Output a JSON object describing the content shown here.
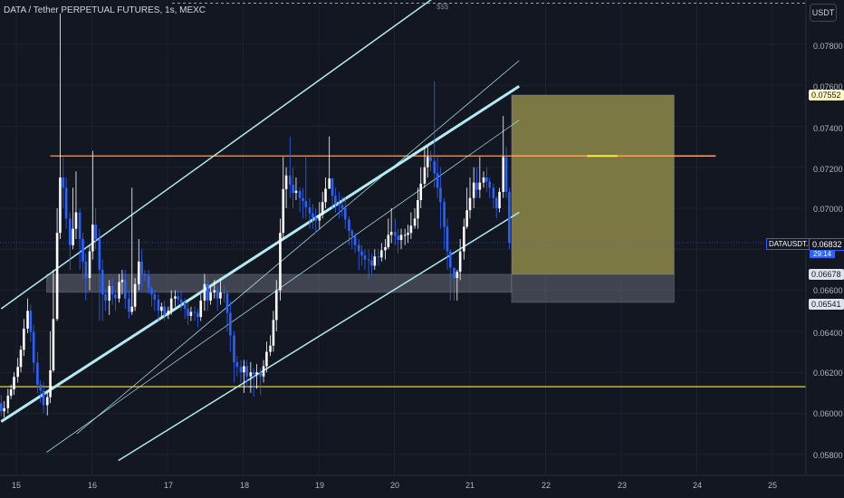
{
  "header": {
    "symbol_title": "DATA / Tether PERPETUAL FUTURES, 1s, MEXC",
    "currency_button": "USDT",
    "alert_marker": "$$$"
  },
  "price_axis": {
    "ticks": [
      "0.07800",
      "0.07600",
      "0.07400",
      "0.07200",
      "0.07000",
      "0.06600",
      "0.06400",
      "0.06200",
      "0.06000",
      "0.05800"
    ]
  },
  "time_axis": {
    "ticks": [
      "15",
      "16",
      "17",
      "18",
      "19",
      "20",
      "21",
      "22",
      "23",
      "24",
      "25"
    ]
  },
  "price_tags": {
    "target": "0.07552",
    "current": "0.06832",
    "entry": "0.06678",
    "stop": "0.06541",
    "ticker": "DATAUSDT.P",
    "countdown": "29:14"
  },
  "colors": {
    "background": "#131722",
    "up_candle": "#ffffff",
    "down_candle": "#2962ff",
    "channel_line": "#b2ebf2",
    "resistance_line": "#f0a35a",
    "support_line": "#ffeb3b",
    "target_zone": "#8e8a4a",
    "stop_zone": "#6d7280"
  },
  "chart_data": {
    "type": "candlestick",
    "symbol": "DATAUSDT.P",
    "x_range": [
      14.8,
      25.4
    ],
    "y_range": [
      0.0573,
      0.0803
    ],
    "price_lines": [
      {
        "value": 0.07255,
        "color": "#f0a35a"
      },
      {
        "value": 0.0613,
        "color": "#ffeb3b"
      },
      {
        "value": 0.08,
        "style": "dashed",
        "color": "#f0a35a"
      }
    ],
    "zones": [
      {
        "x": [
          15.4,
          21.55
        ],
        "y": [
          0.0659,
          0.06678
        ],
        "color": "#6d7280"
      },
      {
        "x": [
          21.55,
          23.7
        ],
        "y": [
          0.06678,
          0.07552
        ],
        "color": "#8e8a4a"
      },
      {
        "x": [
          21.55,
          23.7
        ],
        "y": [
          0.06541,
          0.06678
        ],
        "color": "#6d7280"
      }
    ],
    "forecast_line": {
      "x": [
        21.55,
        24.25
      ],
      "y": 0.07255
    },
    "channel_lines": [
      {
        "x": [
          14.8,
          20.8
        ],
        "y": [
          0.0651,
          0.081
        ],
        "width": 1.5
      },
      {
        "x": [
          15.8,
          21.65
        ],
        "y": [
          0.059,
          0.0772
        ],
        "width": 0.7
      },
      {
        "x": [
          14.8,
          21.65
        ],
        "y": [
          0.0596,
          0.07595
        ],
        "width": 3
      },
      {
        "x": [
          15.4,
          21.65
        ],
        "y": [
          0.0581,
          0.0743
        ],
        "width": 0.7
      },
      {
        "x": [
          16.35,
          21.65
        ],
        "y": [
          0.0577,
          0.0698
        ],
        "width": 1.5
      }
    ],
    "anchors": [
      [
        14.8,
        0.0605
      ],
      [
        15.0,
        0.062
      ],
      [
        15.15,
        0.065
      ],
      [
        15.3,
        0.0615
      ],
      [
        15.4,
        0.0603
      ],
      [
        15.5,
        0.062
      ],
      [
        15.6,
        0.0715
      ],
      [
        15.75,
        0.069
      ],
      [
        15.9,
        0.0665
      ],
      [
        16.05,
        0.0685
      ],
      [
        16.2,
        0.0655
      ],
      [
        16.4,
        0.0665
      ],
      [
        16.55,
        0.0648
      ],
      [
        16.7,
        0.0668
      ],
      [
        16.9,
        0.0655
      ],
      [
        17.05,
        0.0648
      ],
      [
        17.2,
        0.066
      ],
      [
        17.4,
        0.065
      ],
      [
        17.55,
        0.0646
      ],
      [
        17.7,
        0.066
      ],
      [
        17.82,
        0.0652
      ],
      [
        17.88,
        0.063
      ],
      [
        18.0,
        0.0622
      ],
      [
        18.15,
        0.0618
      ],
      [
        18.25,
        0.062
      ],
      [
        18.35,
        0.0635
      ],
      [
        18.45,
        0.067
      ],
      [
        18.55,
        0.0712
      ],
      [
        18.7,
        0.0708
      ],
      [
        18.85,
        0.0702
      ],
      [
        19.0,
        0.0695
      ],
      [
        19.1,
        0.0712
      ],
      [
        19.2,
        0.07
      ],
      [
        19.3,
        0.0705
      ],
      [
        19.4,
        0.069
      ],
      [
        19.55,
        0.068
      ],
      [
        19.7,
        0.067
      ],
      [
        19.85,
        0.0678
      ],
      [
        20.0,
        0.069
      ],
      [
        20.15,
        0.0683
      ],
      [
        20.3,
        0.0695
      ],
      [
        20.5,
        0.0725
      ],
      [
        20.6,
        0.071
      ],
      [
        20.75,
        0.069
      ],
      [
        20.82,
        0.0666
      ],
      [
        20.92,
        0.068
      ],
      [
        21.05,
        0.0705
      ],
      [
        21.15,
        0.0715
      ],
      [
        21.25,
        0.0712
      ],
      [
        21.35,
        0.07
      ],
      [
        21.45,
        0.0725
      ],
      [
        21.55,
        0.069
      ]
    ],
    "candles": [
      [
        14.8,
        0.0605,
        0.0601,
        0.0609,
        0.05985
      ],
      [
        14.84,
        0.0601,
        0.06025,
        0.0606,
        0.0598
      ],
      [
        14.89,
        0.06025,
        0.06086,
        0.0612,
        0.06
      ],
      [
        14.93,
        0.06086,
        0.06117,
        0.0614,
        0.0607
      ],
      [
        14.97,
        0.06117,
        0.06178,
        0.062,
        0.0609
      ],
      [
        15.02,
        0.06178,
        0.06226,
        0.0627,
        0.0615
      ],
      [
        15.06,
        0.06226,
        0.0631,
        0.0633,
        0.062
      ],
      [
        15.1,
        0.0631,
        0.06413,
        0.0646,
        0.0628
      ],
      [
        15.15,
        0.06413,
        0.065,
        0.0656,
        0.0639
      ],
      [
        15.19,
        0.065,
        0.06396,
        0.0653,
        0.0635
      ],
      [
        15.23,
        0.06396,
        0.06247,
        0.0643,
        0.062
      ],
      [
        15.28,
        0.06247,
        0.0614,
        0.063,
        0.061
      ],
      [
        15.32,
        0.0614,
        0.0611,
        0.0616,
        0.0605
      ],
      [
        15.36,
        0.0611,
        0.0604,
        0.0615,
        0.06
      ],
      [
        15.41,
        0.0604,
        0.06079,
        0.061,
        0.0599
      ],
      [
        15.45,
        0.06079,
        0.0621,
        0.064,
        0.0605
      ],
      [
        15.49,
        0.0621,
        0.0646,
        0.067,
        0.062
      ],
      [
        15.54,
        0.0646,
        0.0688,
        0.07,
        0.0645
      ],
      [
        15.58,
        0.0688,
        0.0715,
        0.0795,
        0.0685
      ],
      [
        15.62,
        0.0715,
        0.071,
        0.0725,
        0.07
      ],
      [
        15.66,
        0.071,
        0.0695,
        0.0715,
        0.069
      ],
      [
        15.71,
        0.0695,
        0.0682,
        0.0698,
        0.067
      ],
      [
        15.75,
        0.0682,
        0.069,
        0.071,
        0.068
      ],
      [
        15.79,
        0.069,
        0.0698,
        0.0718,
        0.0685
      ],
      [
        15.84,
        0.0698,
        0.0685,
        0.07,
        0.067
      ],
      [
        15.88,
        0.0685,
        0.0674,
        0.0688,
        0.0665
      ],
      [
        15.92,
        0.0674,
        0.0666,
        0.0678,
        0.0655
      ],
      [
        15.97,
        0.0666,
        0.0679,
        0.0682,
        0.066
      ],
      [
        16.01,
        0.0679,
        0.0692,
        0.0728,
        0.0675
      ],
      [
        16.05,
        0.0692,
        0.0685,
        0.07,
        0.068
      ],
      [
        16.1,
        0.0685,
        0.067,
        0.069,
        0.0645
      ],
      [
        16.14,
        0.067,
        0.0658,
        0.0675,
        0.0645
      ],
      [
        16.18,
        0.0658,
        0.0655,
        0.066,
        0.065
      ],
      [
        16.23,
        0.0655,
        0.0662,
        0.0665,
        0.0648
      ],
      [
        16.27,
        0.0662,
        0.0658,
        0.0666,
        0.0653
      ],
      [
        16.31,
        0.0658,
        0.0656,
        0.066,
        0.065
      ],
      [
        16.36,
        0.0656,
        0.0664,
        0.0668,
        0.0654
      ],
      [
        16.4,
        0.0664,
        0.0665,
        0.067,
        0.0658
      ],
      [
        16.44,
        0.0665,
        0.0656,
        0.067,
        0.0651
      ],
      [
        16.49,
        0.0656,
        0.06495,
        0.066,
        0.0646
      ],
      [
        16.53,
        0.06495,
        0.0652,
        0.071,
        0.0648
      ],
      [
        16.57,
        0.0652,
        0.0663,
        0.0666,
        0.065
      ],
      [
        16.62,
        0.0663,
        0.0674,
        0.0685,
        0.066
      ],
      [
        16.66,
        0.0674,
        0.0668,
        0.068,
        0.066
      ],
      [
        16.7,
        0.0668,
        0.0667,
        0.067,
        0.0664
      ],
      [
        16.75,
        0.0667,
        0.0661,
        0.067,
        0.0658
      ],
      [
        16.79,
        0.0661,
        0.0658,
        0.0662,
        0.0652
      ],
      [
        16.83,
        0.0658,
        0.06555,
        0.066,
        0.065
      ],
      [
        16.88,
        0.06555,
        0.065,
        0.0658,
        0.0645
      ],
      [
        16.92,
        0.065,
        0.0652,
        0.0654,
        0.0647
      ],
      [
        16.96,
        0.0652,
        0.0648,
        0.0655,
        0.0645
      ],
      [
        17.01,
        0.0648,
        0.065,
        0.0652,
        0.0646
      ],
      [
        17.05,
        0.065,
        0.0656,
        0.066,
        0.0648
      ],
      [
        17.1,
        0.0656,
        0.0657,
        0.066,
        0.0652
      ],
      [
        17.14,
        0.0657,
        0.06555,
        0.066,
        0.0653
      ],
      [
        17.18,
        0.06555,
        0.0654,
        0.066,
        0.065
      ],
      [
        17.23,
        0.0654,
        0.0651,
        0.0656,
        0.0646
      ],
      [
        17.27,
        0.0651,
        0.06475,
        0.0654,
        0.0643
      ],
      [
        17.31,
        0.06475,
        0.06495,
        0.0652,
        0.0645
      ],
      [
        17.36,
        0.06495,
        0.0649,
        0.0652,
        0.0645
      ],
      [
        17.4,
        0.0649,
        0.0647,
        0.0651,
        0.0642
      ],
      [
        17.44,
        0.0647,
        0.0655,
        0.0658,
        0.0645
      ],
      [
        17.49,
        0.0655,
        0.0663,
        0.0668,
        0.065
      ],
      [
        17.53,
        0.0663,
        0.0655,
        0.0665,
        0.065
      ],
      [
        17.57,
        0.0655,
        0.0659,
        0.0662,
        0.0653
      ],
      [
        17.62,
        0.0659,
        0.066,
        0.0665,
        0.0656
      ],
      [
        17.66,
        0.066,
        0.0656,
        0.0662,
        0.065
      ],
      [
        17.7,
        0.0656,
        0.0659,
        0.0666,
        0.0653
      ],
      [
        17.75,
        0.0659,
        0.06585,
        0.0662,
        0.0654
      ],
      [
        17.79,
        0.06585,
        0.0649,
        0.066,
        0.064
      ],
      [
        17.83,
        0.0649,
        0.0638,
        0.0655,
        0.063
      ],
      [
        17.88,
        0.0638,
        0.0625,
        0.064,
        0.0615
      ],
      [
        17.92,
        0.0625,
        0.06227,
        0.0628,
        0.0618
      ],
      [
        17.97,
        0.06227,
        0.062,
        0.0626,
        0.0615
      ],
      [
        18.01,
        0.062,
        0.0623,
        0.0626,
        0.061
      ],
      [
        18.05,
        0.0623,
        0.0618,
        0.0626,
        0.0613
      ],
      [
        18.1,
        0.0618,
        0.062,
        0.0625,
        0.061
      ],
      [
        18.14,
        0.062,
        0.0619,
        0.0622,
        0.0608
      ],
      [
        18.18,
        0.0619,
        0.062,
        0.0624,
        0.0612
      ],
      [
        18.23,
        0.062,
        0.0618,
        0.0622,
        0.0609
      ],
      [
        18.27,
        0.0618,
        0.0623,
        0.0626,
        0.0615
      ],
      [
        18.31,
        0.0623,
        0.063,
        0.0635,
        0.062
      ],
      [
        18.36,
        0.063,
        0.0633,
        0.0638,
        0.0628
      ],
      [
        18.4,
        0.0633,
        0.06455,
        0.065,
        0.063
      ],
      [
        18.44,
        0.06455,
        0.066,
        0.0665,
        0.064
      ],
      [
        18.49,
        0.066,
        0.0688,
        0.0695,
        0.0655
      ],
      [
        18.53,
        0.0688,
        0.07093,
        0.0725,
        0.0685
      ],
      [
        18.57,
        0.07093,
        0.0716,
        0.072,
        0.07
      ],
      [
        18.62,
        0.0716,
        0.07115,
        0.0735,
        0.0705
      ],
      [
        18.66,
        0.07115,
        0.07075,
        0.072,
        0.07
      ],
      [
        18.7,
        0.07075,
        0.07085,
        0.0715,
        0.0704
      ],
      [
        18.75,
        0.07085,
        0.0705,
        0.071,
        0.0698
      ],
      [
        18.79,
        0.0705,
        0.07035,
        0.071,
        0.0695
      ],
      [
        18.83,
        0.07035,
        0.07005,
        0.0725,
        0.0695
      ],
      [
        18.88,
        0.07005,
        0.06975,
        0.0705,
        0.069
      ],
      [
        18.92,
        0.06975,
        0.06955,
        0.0702,
        0.069
      ],
      [
        18.96,
        0.06955,
        0.0694,
        0.07,
        0.0688
      ],
      [
        19.01,
        0.0694,
        0.0697,
        0.0703,
        0.069
      ],
      [
        19.05,
        0.0697,
        0.0703,
        0.0708,
        0.0695
      ],
      [
        19.09,
        0.0703,
        0.07095,
        0.0715,
        0.07
      ],
      [
        19.14,
        0.07095,
        0.07145,
        0.0735,
        0.071
      ],
      [
        19.18,
        0.07145,
        0.0706,
        0.0715,
        0.07
      ],
      [
        19.22,
        0.0706,
        0.0702,
        0.071,
        0.0698
      ],
      [
        19.27,
        0.0702,
        0.07015,
        0.0708,
        0.0695
      ],
      [
        19.31,
        0.07015,
        0.07,
        0.0706,
        0.0696
      ],
      [
        19.35,
        0.07,
        0.06945,
        0.0705,
        0.069
      ],
      [
        19.4,
        0.06945,
        0.0689,
        0.0696,
        0.0682
      ],
      [
        19.44,
        0.0689,
        0.06865,
        0.069,
        0.068
      ],
      [
        19.48,
        0.06865,
        0.0682,
        0.0688,
        0.0678
      ],
      [
        19.53,
        0.0682,
        0.0679,
        0.0685,
        0.067
      ],
      [
        19.57,
        0.0679,
        0.0677,
        0.0682,
        0.0672
      ],
      [
        19.61,
        0.0677,
        0.0675,
        0.068,
        0.067
      ],
      [
        19.66,
        0.0675,
        0.06745,
        0.068,
        0.0665
      ],
      [
        19.7,
        0.06745,
        0.0672,
        0.0678,
        0.0668
      ],
      [
        19.74,
        0.0672,
        0.06765,
        0.068,
        0.067
      ],
      [
        19.79,
        0.06765,
        0.0676,
        0.068,
        0.0672
      ],
      [
        19.83,
        0.0676,
        0.06795,
        0.0683,
        0.0674
      ],
      [
        19.88,
        0.06795,
        0.0681,
        0.0685,
        0.0675
      ],
      [
        19.92,
        0.0681,
        0.0687,
        0.0695,
        0.068
      ],
      [
        19.96,
        0.0687,
        0.06885,
        0.07,
        0.0683
      ],
      [
        20.01,
        0.06885,
        0.06865,
        0.0695,
        0.0682
      ],
      [
        20.05,
        0.06865,
        0.06845,
        0.069,
        0.0678
      ],
      [
        20.09,
        0.06845,
        0.0687,
        0.069,
        0.068
      ],
      [
        20.14,
        0.0687,
        0.0687,
        0.069,
        0.0682
      ],
      [
        20.18,
        0.0687,
        0.0688,
        0.0692,
        0.0683
      ],
      [
        20.22,
        0.0688,
        0.06915,
        0.0698,
        0.0685
      ],
      [
        20.27,
        0.06915,
        0.0695,
        0.07,
        0.069
      ],
      [
        20.31,
        0.0695,
        0.0704,
        0.071,
        0.069
      ],
      [
        20.35,
        0.0704,
        0.0712,
        0.072,
        0.07
      ],
      [
        20.4,
        0.0712,
        0.072,
        0.073,
        0.071
      ],
      [
        20.44,
        0.072,
        0.0725,
        0.073,
        0.0715
      ],
      [
        20.48,
        0.0725,
        0.0723,
        0.0728,
        0.0718
      ],
      [
        20.53,
        0.0723,
        0.0717,
        0.0762,
        0.071
      ],
      [
        20.57,
        0.0717,
        0.071,
        0.0725,
        0.0705
      ],
      [
        20.61,
        0.071,
        0.0703,
        0.072,
        0.069
      ],
      [
        20.66,
        0.0703,
        0.0691,
        0.0705,
        0.068
      ],
      [
        20.7,
        0.0691,
        0.0679,
        0.0695,
        0.067
      ],
      [
        20.74,
        0.0679,
        0.0671,
        0.068,
        0.0655
      ],
      [
        20.79,
        0.0671,
        0.0666,
        0.067,
        0.0655
      ],
      [
        20.83,
        0.0666,
        0.0669,
        0.067,
        0.0655
      ],
      [
        20.87,
        0.0669,
        0.0679,
        0.0685,
        0.0665
      ],
      [
        20.92,
        0.0679,
        0.0691,
        0.0695,
        0.0675
      ],
      [
        20.96,
        0.0691,
        0.0699,
        0.071,
        0.069
      ],
      [
        21.0,
        0.0699,
        0.0705,
        0.0715,
        0.0695
      ],
      [
        21.05,
        0.0705,
        0.07125,
        0.072,
        0.07
      ],
      [
        21.09,
        0.07125,
        0.0709,
        0.072,
        0.0705
      ],
      [
        21.13,
        0.0709,
        0.07125,
        0.0725,
        0.0705
      ],
      [
        21.18,
        0.07125,
        0.0715,
        0.0718,
        0.071
      ],
      [
        21.22,
        0.0715,
        0.0713,
        0.072,
        0.0708
      ],
      [
        21.26,
        0.0713,
        0.071,
        0.0715,
        0.0705
      ],
      [
        21.31,
        0.071,
        0.0705,
        0.0712,
        0.07
      ],
      [
        21.35,
        0.0705,
        0.07,
        0.0706,
        0.0695
      ],
      [
        21.39,
        0.07,
        0.0708,
        0.071,
        0.0698
      ],
      [
        21.44,
        0.0708,
        0.0725,
        0.0745,
        0.0705
      ],
      [
        21.48,
        0.0725,
        0.0708,
        0.073,
        0.0705
      ],
      [
        21.52,
        0.0708,
        0.06832,
        0.071,
        0.068
      ]
    ]
  }
}
